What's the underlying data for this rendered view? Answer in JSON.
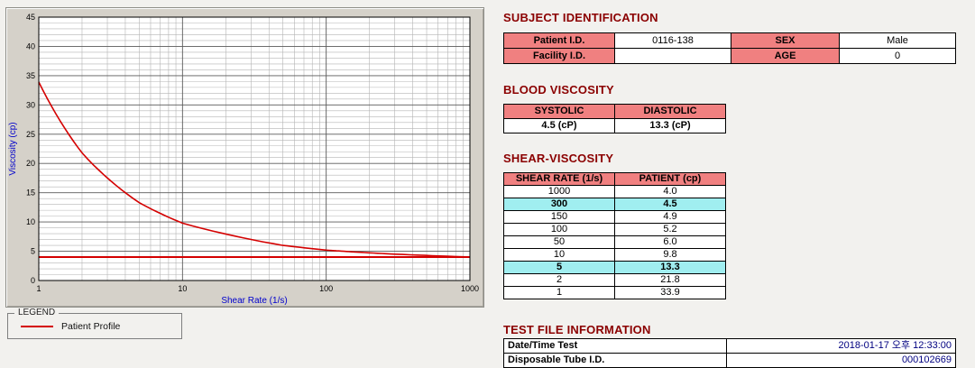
{
  "colors": {
    "accent_red": "#d40000",
    "section_title": "#8b0000",
    "table_header_bg": "#f08080",
    "highlight_bg": "#a0eef0",
    "panel_bg": "#d5d1c9",
    "axis_label": "#0000cc",
    "value_text": "#000080"
  },
  "chart": {
    "legend_title": "LEGEND",
    "legend_series": "Patient Profile"
  },
  "chart_data": {
    "type": "line",
    "title": "",
    "xlabel": "Shear Rate (1/s)",
    "ylabel": "Viscosity (cp)",
    "xscale": "log",
    "xlim": [
      1,
      1000
    ],
    "ylim": [
      0,
      45
    ],
    "xticks": [
      1,
      10,
      100,
      1000
    ],
    "yticks": [
      0,
      5,
      10,
      15,
      20,
      25,
      30,
      35,
      40,
      45
    ],
    "grid": true,
    "legend_position": "bottom-left",
    "x": [
      1,
      2,
      5,
      10,
      50,
      100,
      150,
      300,
      1000
    ],
    "series": [
      {
        "name": "Patient Profile",
        "values": [
          33.9,
          21.8,
          13.3,
          9.8,
          6.0,
          5.2,
          4.9,
          4.5,
          4.0
        ]
      }
    ],
    "reference_line_y": 4.0
  },
  "subject_identification": {
    "title": "SUBJECT IDENTIFICATION",
    "fields": {
      "patient_id": {
        "label": "Patient I.D.",
        "value": "0116-138"
      },
      "sex": {
        "label": "SEX",
        "value": "Male"
      },
      "facility_id": {
        "label": "Facility I.D.",
        "value": ""
      },
      "age": {
        "label": "AGE",
        "value": "0"
      }
    }
  },
  "blood_viscosity": {
    "title": "BLOOD VISCOSITY",
    "systolic": {
      "label": "SYSTOLIC",
      "value": "4.5 (cP)"
    },
    "diastolic": {
      "label": "DIASTOLIC",
      "value": "13.3 (cP)"
    }
  },
  "shear_viscosity": {
    "title": "SHEAR-VISCOSITY",
    "headers": [
      "SHEAR RATE (1/s)",
      "PATIENT (cp)"
    ],
    "rows": [
      {
        "rate": "1000",
        "patient": "4.0",
        "highlight": false
      },
      {
        "rate": "300",
        "patient": "4.5",
        "highlight": true
      },
      {
        "rate": "150",
        "patient": "4.9",
        "highlight": false
      },
      {
        "rate": "100",
        "patient": "5.2",
        "highlight": false
      },
      {
        "rate": "50",
        "patient": "6.0",
        "highlight": false
      },
      {
        "rate": "10",
        "patient": "9.8",
        "highlight": false
      },
      {
        "rate": "5",
        "patient": "13.3",
        "highlight": true
      },
      {
        "rate": "2",
        "patient": "21.8",
        "highlight": false
      },
      {
        "rate": "1",
        "patient": "33.9",
        "highlight": false
      }
    ]
  },
  "test_file_information": {
    "title": "TEST FILE INFORMATION",
    "rows": [
      {
        "label": "Date/Time Test",
        "value": "2018-01-17  오후 12:33:00"
      },
      {
        "label": "Disposable Tube I.D.",
        "value": "000102669"
      }
    ]
  }
}
